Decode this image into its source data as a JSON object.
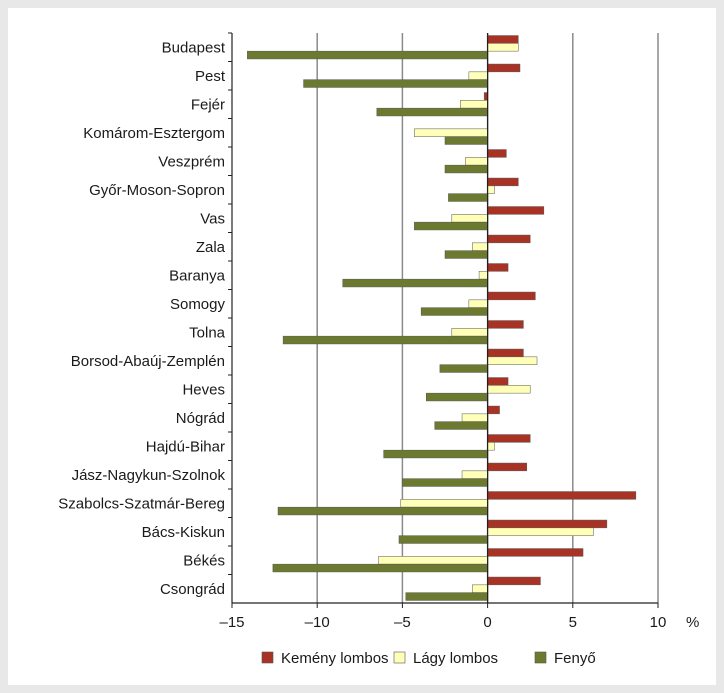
{
  "chart_data": {
    "type": "bar",
    "orientation": "horizontal",
    "categories": [
      "Budapest",
      "Pest",
      "Fejér",
      "Komárom-Esztergom",
      "Veszprém",
      "Győr-Moson-Sopron",
      "Vas",
      "Zala",
      "Baranya",
      "Somogy",
      "Tolna",
      "Borsod-Abaúj-Zemplén",
      "Heves",
      "Nógrád",
      "Hajdú-Bihar",
      "Jász-Nagykun-Szolnok",
      "Szabolcs-Szatmár-Bereg",
      "Bács-Kiskun",
      "Békés",
      "Csongrád"
    ],
    "series": [
      {
        "name": "Kemény lombos",
        "color": "#a83224",
        "values": [
          1.8,
          1.9,
          -0.2,
          0,
          1.1,
          1.8,
          3.3,
          2.5,
          1.2,
          2.8,
          2.1,
          2.1,
          1.2,
          0.7,
          2.5,
          2.3,
          8.7,
          7.0,
          5.6,
          3.1
        ]
      },
      {
        "name": "Lágy lombos",
        "color": "#ffffb8",
        "values": [
          1.8,
          -1.1,
          -1.6,
          -4.3,
          -1.3,
          0.4,
          -2.1,
          -0.9,
          -0.5,
          -1.1,
          -2.1,
          2.9,
          2.5,
          -1.5,
          0.4,
          -1.5,
          -5.1,
          6.2,
          -6.4,
          -0.9
        ]
      },
      {
        "name": "Fenyő",
        "color": "#6b7a2e",
        "values": [
          -14.1,
          -10.8,
          -6.5,
          -2.5,
          -2.5,
          -2.3,
          -4.3,
          -2.5,
          -8.5,
          -3.9,
          -12.0,
          -2.8,
          -3.6,
          -3.1,
          -6.1,
          -5.0,
          -12.3,
          -5.2,
          -12.6,
          -4.8
        ]
      }
    ],
    "x_ticks": [
      "–15",
      "–10",
      "–5",
      "0",
      "5",
      "10"
    ],
    "x_tick_values": [
      -15,
      -10,
      -5,
      0,
      5,
      10
    ],
    "xlim": [
      -15,
      10
    ],
    "unit_label": "%",
    "grid": "vertical gridlines at every 5",
    "legend_position": "bottom"
  }
}
